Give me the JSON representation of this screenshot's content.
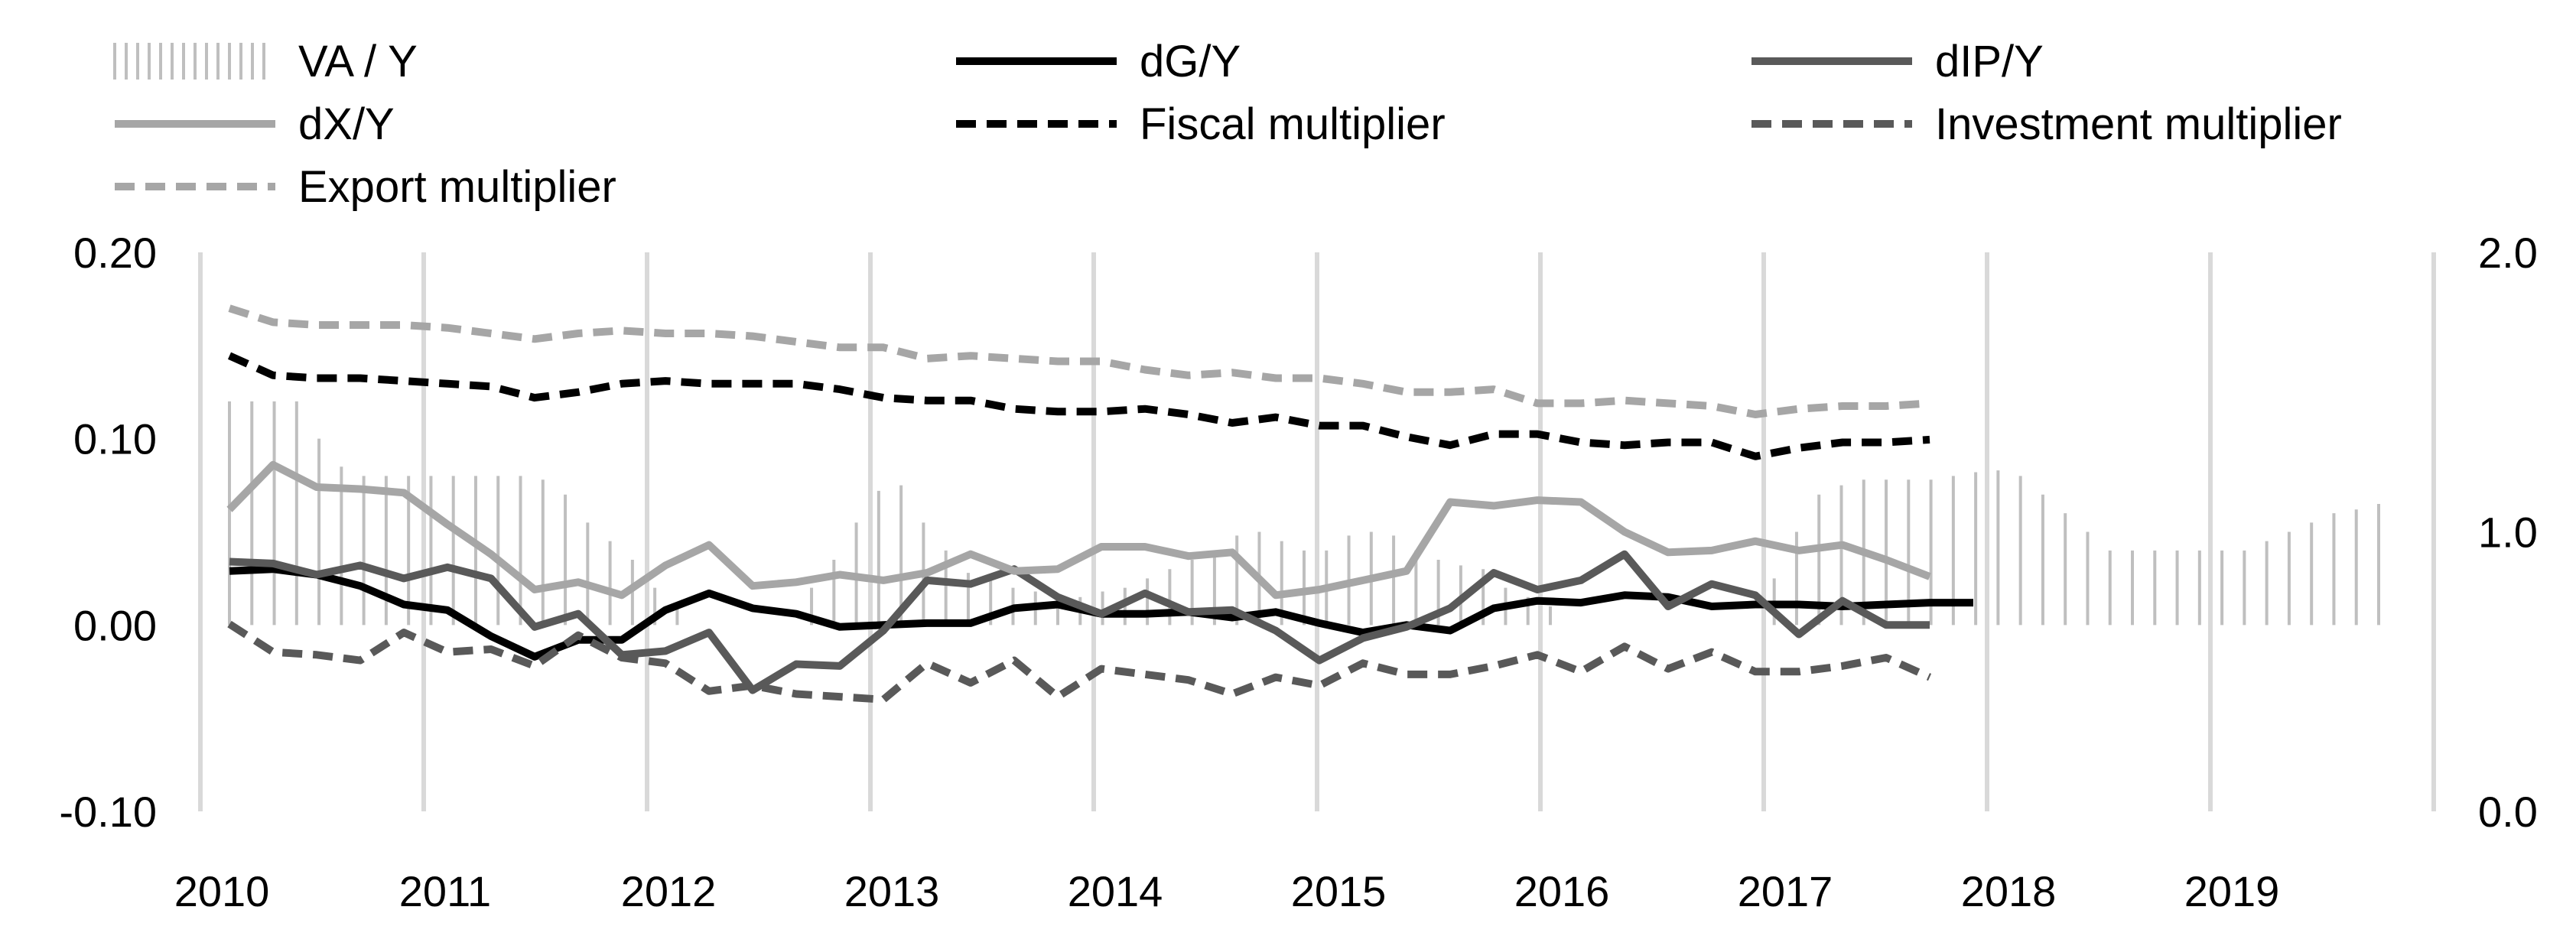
{
  "chart_data": {
    "type": "line",
    "title": "",
    "xlabel": "",
    "ylabel_left": "",
    "ylabel_right": "",
    "x_tick_labels": [
      "2010",
      "2011",
      "2012",
      "2013",
      "2014",
      "2015",
      "2016",
      "2017",
      "2018",
      "2019"
    ],
    "left_axis": {
      "ylim": [
        -0.1,
        0.2
      ],
      "ticks": [
        "-0.10",
        "0.00",
        "0.10",
        "0.20"
      ]
    },
    "right_axis": {
      "ylim": [
        0.0,
        2.0
      ],
      "ticks": [
        "0.0",
        "1.0",
        "2.0"
      ]
    },
    "series": [
      {
        "name": "VA / Y",
        "type": "bar",
        "axis": "left",
        "color": "#bfbfbf",
        "values": [
          0.12,
          0.12,
          0.12,
          0.12,
          0.1,
          0.085,
          0.08,
          0.08,
          0.08,
          0.08,
          0.08,
          0.08,
          0.08,
          0.08,
          0.078,
          0.07,
          0.055,
          0.045,
          0.035,
          0.02,
          0.01,
          0.0,
          0.0,
          0.0,
          0.0,
          0.0,
          0.02,
          0.035,
          0.055,
          0.072,
          0.075,
          0.055,
          0.04,
          0.028,
          0.025,
          0.02,
          0.018,
          0.016,
          0.015,
          0.018,
          0.02,
          0.025,
          0.03,
          0.035,
          0.04,
          0.048,
          0.05,
          0.045,
          0.04,
          0.04,
          0.048,
          0.05,
          0.048,
          0.04,
          0.035,
          0.032,
          0.03,
          0.02,
          0.015,
          0.01,
          0.0,
          0.0,
          0.0,
          0.0,
          0.0,
          0.0,
          0.0,
          0.0,
          0.0,
          0.025,
          0.05,
          0.07,
          0.075,
          0.078,
          0.078,
          0.078,
          0.078,
          0.08,
          0.082,
          0.083,
          0.08,
          0.07,
          0.06,
          0.05,
          0.04,
          0.04,
          0.04,
          0.04,
          0.04,
          0.04,
          0.04,
          0.045,
          0.05,
          0.055,
          0.06,
          0.062,
          0.065
        ]
      },
      {
        "name": "dG/Y",
        "type": "line",
        "axis": "left",
        "color": "#000000",
        "dash": "solid",
        "values": [
          0.029,
          0.03,
          0.027,
          0.021,
          0.011,
          0.008,
          -0.006,
          -0.017,
          -0.008,
          -0.008,
          0.008,
          0.017,
          0.009,
          0.006,
          -0.001,
          0.0,
          0.001,
          0.001,
          0.009,
          0.011,
          0.006,
          0.006,
          0.007,
          0.004,
          0.007,
          0.001,
          -0.004,
          0.0,
          -0.003,
          0.009,
          0.013,
          0.012,
          0.016,
          0.015,
          0.01,
          0.011,
          0.011,
          0.01,
          0.011,
          0.012,
          0.012
        ]
      },
      {
        "name": "dIP/Y",
        "type": "line",
        "axis": "left",
        "color": "#595959",
        "dash": "solid",
        "values": [
          0.034,
          0.033,
          0.027,
          0.032,
          0.025,
          0.031,
          0.025,
          -0.001,
          0.006,
          -0.016,
          -0.014,
          -0.004,
          -0.035,
          -0.021,
          -0.022,
          -0.003,
          0.024,
          0.022,
          0.03,
          0.015,
          0.006,
          0.017,
          0.007,
          0.008,
          -0.003,
          -0.019,
          -0.007,
          -0.001,
          0.009,
          0.028,
          0.019,
          0.024,
          0.038,
          0.01,
          0.022,
          0.016,
          -0.005,
          0.013,
          0.0,
          0.0
        ]
      },
      {
        "name": "dX/Y",
        "type": "line",
        "axis": "left",
        "color": "#a6a6a6",
        "dash": "solid",
        "values": [
          0.062,
          0.086,
          0.074,
          0.073,
          0.071,
          0.054,
          0.038,
          0.019,
          0.023,
          0.016,
          0.032,
          0.043,
          0.021,
          0.023,
          0.027,
          0.024,
          0.028,
          0.038,
          0.029,
          0.03,
          0.042,
          0.042,
          0.037,
          0.039,
          0.016,
          0.019,
          0.024,
          0.029,
          0.066,
          0.064,
          0.067,
          0.066,
          0.05,
          0.039,
          0.04,
          0.045,
          0.04,
          0.043,
          0.035,
          0.026
        ]
      },
      {
        "name": "Fiscal multiplier",
        "type": "line",
        "axis": "right",
        "color": "#000000",
        "dash": "dashed",
        "values": [
          1.63,
          1.56,
          1.55,
          1.55,
          1.54,
          1.53,
          1.52,
          1.48,
          1.5,
          1.53,
          1.54,
          1.53,
          1.53,
          1.53,
          1.51,
          1.48,
          1.47,
          1.47,
          1.44,
          1.43,
          1.43,
          1.44,
          1.42,
          1.39,
          1.41,
          1.38,
          1.38,
          1.34,
          1.31,
          1.35,
          1.35,
          1.32,
          1.31,
          1.32,
          1.32,
          1.27,
          1.3,
          1.32,
          1.32,
          1.33
        ]
      },
      {
        "name": "Investment multiplier",
        "type": "line",
        "axis": "right",
        "color": "#595959",
        "dash": "dashed",
        "values": [
          0.67,
          0.57,
          0.56,
          0.54,
          0.64,
          0.57,
          0.58,
          0.52,
          0.63,
          0.55,
          0.53,
          0.43,
          0.45,
          0.42,
          0.41,
          0.4,
          0.53,
          0.46,
          0.54,
          0.41,
          0.51,
          0.49,
          0.47,
          0.42,
          0.48,
          0.45,
          0.53,
          0.49,
          0.49,
          0.52,
          0.56,
          0.5,
          0.59,
          0.51,
          0.57,
          0.5,
          0.5,
          0.52,
          0.55,
          0.48
        ]
      },
      {
        "name": "Export multiplier",
        "type": "line",
        "axis": "right",
        "color": "#a6a6a6",
        "dash": "dashed",
        "values": [
          1.8,
          1.75,
          1.74,
          1.74,
          1.74,
          1.73,
          1.71,
          1.69,
          1.71,
          1.72,
          1.71,
          1.71,
          1.7,
          1.68,
          1.66,
          1.66,
          1.62,
          1.63,
          1.62,
          1.61,
          1.61,
          1.58,
          1.56,
          1.57,
          1.55,
          1.55,
          1.53,
          1.5,
          1.5,
          1.51,
          1.46,
          1.46,
          1.47,
          1.46,
          1.45,
          1.42,
          1.44,
          1.45,
          1.45,
          1.46
        ]
      }
    ],
    "legend": {
      "position": "top",
      "entries": [
        "VA / Y",
        "dG/Y",
        "dIP/Y",
        "dX/Y",
        "Fiscal multiplier",
        "Investment multiplier",
        "Export multiplier"
      ]
    }
  }
}
